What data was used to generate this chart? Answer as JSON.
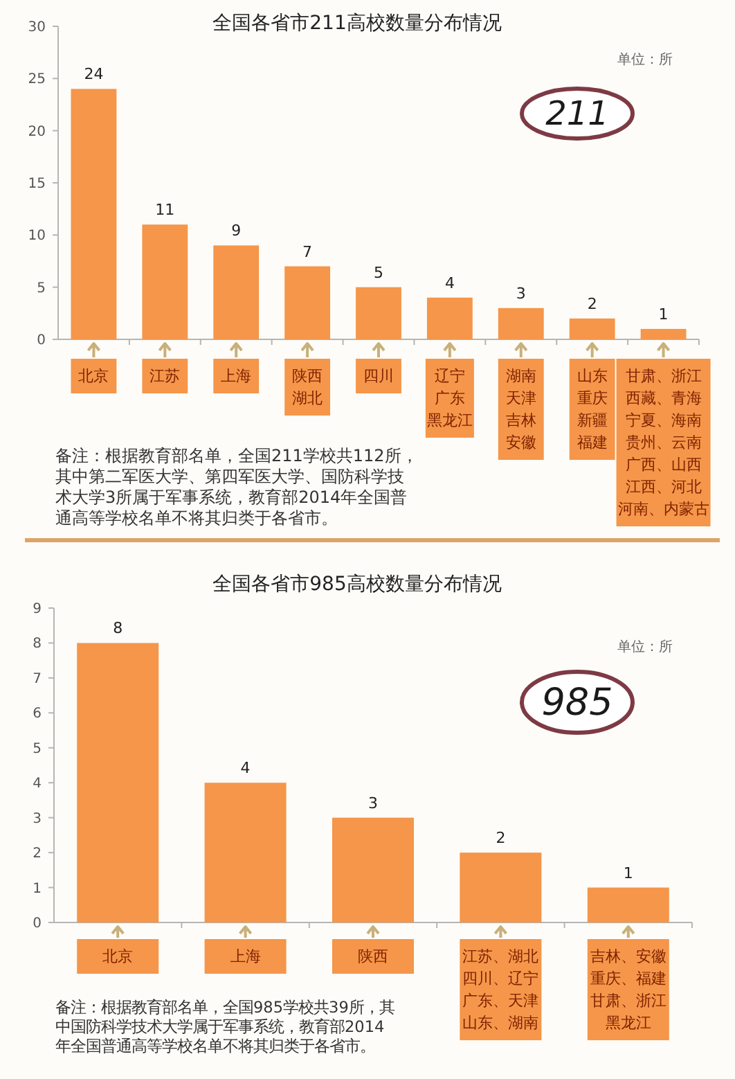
{
  "chart_data": [
    {
      "type": "bar",
      "title": "全国各省市211高校数量分布情况",
      "annotations": [
        "单位：所",
        "211",
        "备注：根据教育部名单，全国211学校共112所，其中第二军医大学、第四军医大学、国防科学技术大学3所属于军事系统，教育部2014年全国普通高等学校名单不将其归类于各省市。"
      ],
      "categories": [
        "北京",
        "江苏",
        "上海",
        "陕西湖北",
        "四川",
        "辽宁广东黑龙江",
        "湖南天津吉林安徽",
        "山东重庆新疆福建",
        "甘肃、浙江西藏、青海宁夏、海南贵州、云南广西、山西江西、河北河南、内蒙古"
      ],
      "values": [
        24,
        11,
        9,
        7,
        5,
        4,
        3,
        2,
        1
      ],
      "color": "#f5964a",
      "ylim": [
        0,
        30
      ],
      "yticks": [
        0,
        5,
        10,
        15,
        20,
        25,
        30
      ],
      "data_labels": true
    },
    {
      "type": "bar",
      "title": "全国各省市985高校数量分布情况",
      "annotations": [
        "单位：所",
        "985",
        "备注：根据教育部名单，全国985学校共39所，其中国防科学技术大学属于军事系统，教育部2014年全国普通高等学校名单不将其归类于各省市。"
      ],
      "categories": [
        "北京",
        "上海",
        "陕西",
        "江苏、湖北四川、辽宁广东、天津山东、湖南",
        "吉林、安徽重庆、福建甘肃、浙江黑龙江"
      ],
      "values": [
        8,
        4,
        3,
        2,
        1
      ],
      "color": "#f5964a",
      "ylim": [
        0,
        9
      ],
      "yticks": [
        0,
        1,
        2,
        3,
        4,
        5,
        6,
        7,
        8,
        9
      ],
      "data_labels": true
    }
  ]
}
